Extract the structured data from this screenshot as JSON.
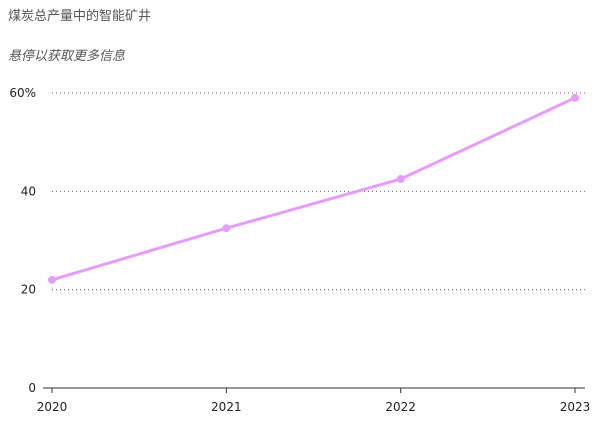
{
  "title": "煤炭总产量中的智能矿井",
  "subtitle": "悬停以获取更多信息",
  "chart_data": {
    "type": "line",
    "title": "煤炭总产量中的智能矿井",
    "subtitle": "悬停以获取更多信息",
    "xlabel": "",
    "ylabel": "",
    "x": [
      "2020",
      "2021",
      "2022",
      "2023"
    ],
    "series": [
      {
        "values": [
          22,
          32.5,
          42.5,
          59
        ],
        "color": "#e69cf9"
      }
    ],
    "ylim": [
      0,
      60
    ],
    "y_ticks": [
      0,
      20,
      40,
      60
    ],
    "y_tick_labels": [
      "0",
      "20",
      "40",
      "60%"
    ],
    "grid": "horizontal dotted",
    "legend": "none",
    "colors": {
      "line": "#e69cf9",
      "grid": "#666666",
      "axis": "#333333"
    }
  }
}
